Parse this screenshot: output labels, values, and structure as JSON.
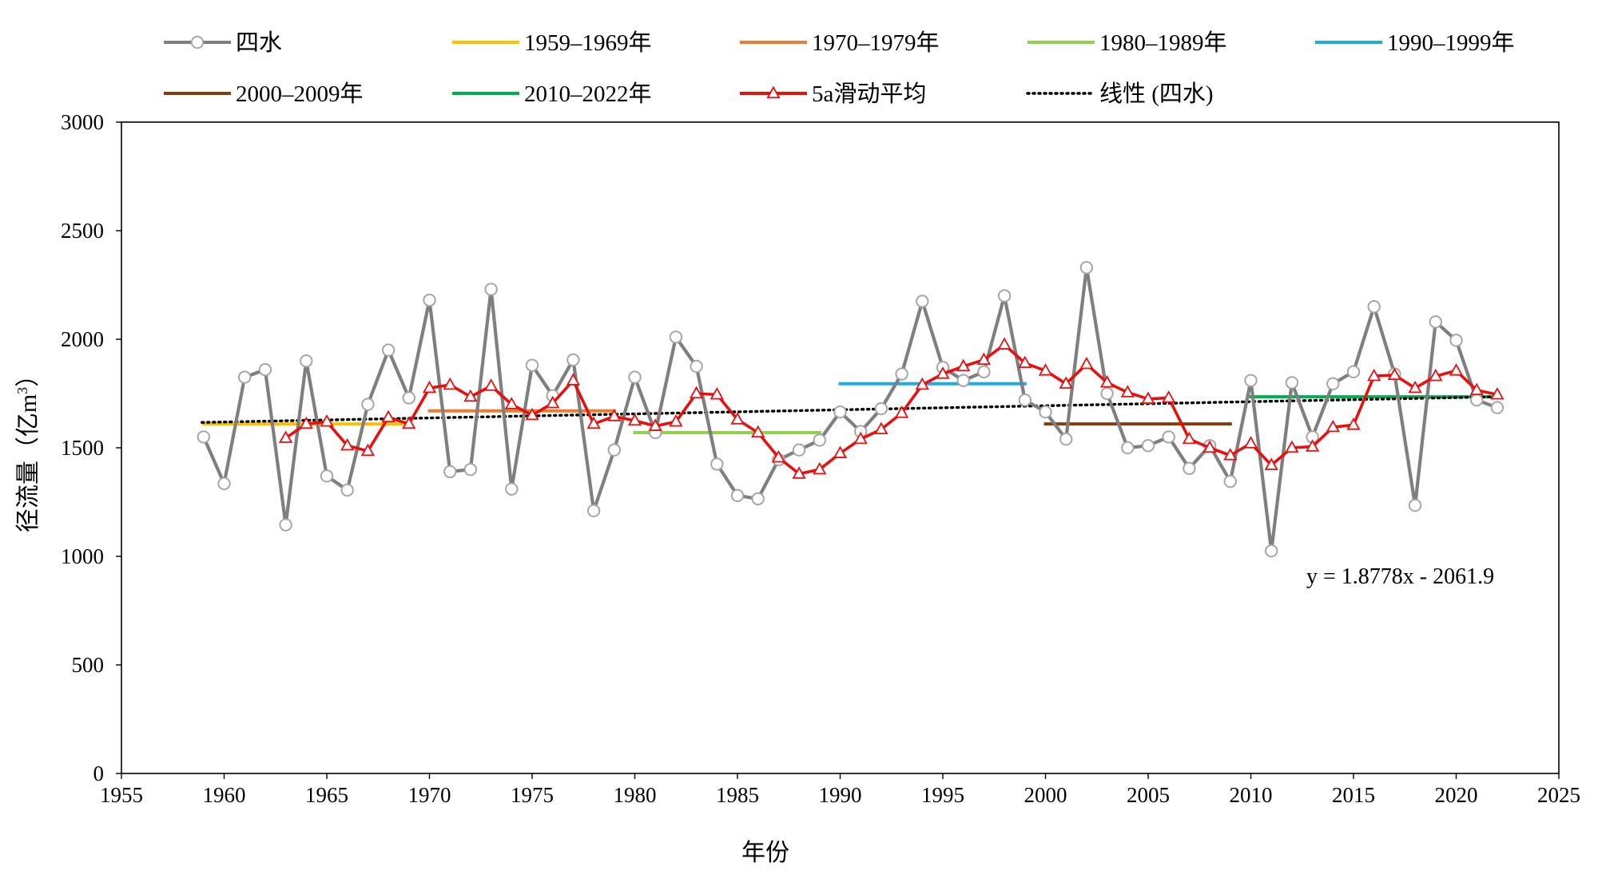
{
  "chart_data": {
    "type": "line",
    "title": "",
    "xlabel": "年份",
    "ylabel_main": "径流量（亿m",
    "ylabel_sup": "3",
    "ylabel_close": "）",
    "xlim": [
      1955,
      2025
    ],
    "ylim": [
      0,
      3000
    ],
    "x_ticks": [
      1955,
      1960,
      1965,
      1970,
      1975,
      1980,
      1985,
      1990,
      1995,
      2000,
      2005,
      2010,
      2015,
      2020,
      2025
    ],
    "y_ticks": [
      0,
      500,
      1000,
      1500,
      2000,
      2500,
      3000
    ],
    "grid": false,
    "legend_position": "top",
    "series": [
      {
        "name": "四水",
        "color": "#7f7f7f",
        "marker": "circle",
        "x": [
          1959,
          1960,
          1961,
          1962,
          1963,
          1964,
          1965,
          1966,
          1967,
          1968,
          1969,
          1970,
          1971,
          1972,
          1973,
          1974,
          1975,
          1976,
          1977,
          1978,
          1979,
          1980,
          1981,
          1982,
          1983,
          1984,
          1985,
          1986,
          1987,
          1988,
          1989,
          1990,
          1991,
          1992,
          1993,
          1994,
          1995,
          1996,
          1997,
          1998,
          1999,
          2000,
          2001,
          2002,
          2003,
          2004,
          2005,
          2006,
          2007,
          2008,
          2009,
          2010,
          2011,
          2012,
          2013,
          2014,
          2015,
          2016,
          2017,
          2018,
          2019,
          2020,
          2021,
          2022
        ],
        "values": [
          1550,
          1335,
          1825,
          1860,
          1145,
          1900,
          1370,
          1305,
          1700,
          1950,
          1730,
          2180,
          1390,
          1400,
          2230,
          1310,
          1880,
          1740,
          1905,
          1210,
          1490,
          1825,
          1570,
          2010,
          1875,
          1425,
          1280,
          1265,
          1445,
          1490,
          1535,
          1665,
          1575,
          1680,
          1840,
          2175,
          1870,
          1810,
          1850,
          2200,
          1720,
          1665,
          1540,
          2330,
          1750,
          1500,
          1510,
          1550,
          1405,
          1510,
          1345,
          1810,
          1025,
          1800,
          1550,
          1795,
          1850,
          2150,
          1840,
          1235,
          2080,
          1995,
          1720,
          1685
        ]
      },
      {
        "name": "5a滑动平均",
        "color": "#e8100f",
        "marker": "triangle",
        "x": [
          1963,
          1964,
          1965,
          1966,
          1967,
          1968,
          1969,
          1970,
          1971,
          1972,
          1973,
          1974,
          1975,
          1976,
          1977,
          1978,
          1979,
          1980,
          1981,
          1982,
          1983,
          1984,
          1985,
          1986,
          1987,
          1988,
          1989,
          1990,
          1991,
          1992,
          1993,
          1994,
          1995,
          1996,
          1997,
          1998,
          1999,
          2000,
          2001,
          2002,
          2003,
          2004,
          2005,
          2006,
          2007,
          2008,
          2009,
          2010,
          2011,
          2012,
          2013,
          2014,
          2015,
          2016,
          2017,
          2018,
          2019,
          2020,
          2021,
          2022
        ],
        "values": [
          1545,
          1610,
          1620,
          1510,
          1485,
          1640,
          1610,
          1775,
          1790,
          1735,
          1785,
          1700,
          1650,
          1705,
          1810,
          1610,
          1645,
          1625,
          1600,
          1620,
          1750,
          1745,
          1630,
          1570,
          1455,
          1380,
          1400,
          1475,
          1540,
          1585,
          1660,
          1790,
          1840,
          1875,
          1905,
          1975,
          1890,
          1855,
          1795,
          1885,
          1800,
          1755,
          1725,
          1730,
          1540,
          1500,
          1465,
          1520,
          1420,
          1500,
          1505,
          1595,
          1605,
          1830,
          1835,
          1775,
          1830,
          1855,
          1765,
          1745
        ]
      }
    ],
    "period_means": [
      {
        "name": "1959–1969年",
        "color": "#ffc000",
        "x_start": 1959,
        "x_end": 1969,
        "value": 1610
      },
      {
        "name": "1970–1979年",
        "color": "#ed7d31",
        "x_start": 1970,
        "x_end": 1979,
        "value": 1670
      },
      {
        "name": "1980–1989年",
        "color": "#92d050",
        "x_start": 1980,
        "x_end": 1989,
        "value": 1570
      },
      {
        "name": "1990–1999年",
        "color": "#1eaae8",
        "x_start": 1990,
        "x_end": 1999,
        "value": 1795
      },
      {
        "name": "2000–2009年",
        "color": "#843c0c",
        "x_start": 2000,
        "x_end": 2009,
        "value": 1610
      },
      {
        "name": "2010–2022年",
        "color": "#00b050",
        "x_start": 2010,
        "x_end": 2022,
        "value": 1735
      }
    ],
    "trendline": {
      "name": "线性 (四水)",
      "color": "#000000",
      "slope": 1.8778,
      "intercept": -2061.9,
      "x_start": 1959,
      "x_end": 2022,
      "equation_label": "y = 1.8778x - 2061.9"
    },
    "legend": [
      {
        "label": "四水",
        "kind": "series-circle",
        "color": "#7f7f7f",
        "row": 0
      },
      {
        "label": "1959–1969年",
        "kind": "line",
        "color": "#ffc000",
        "row": 0
      },
      {
        "label": "1970–1979年",
        "kind": "line",
        "color": "#ed7d31",
        "row": 0
      },
      {
        "label": "1980–1989年",
        "kind": "line",
        "color": "#92d050",
        "row": 0
      },
      {
        "label": "1990–1999年",
        "kind": "line",
        "color": "#1eaae8",
        "row": 0
      },
      {
        "label": "2000–2009年",
        "kind": "line",
        "color": "#843c0c",
        "row": 1
      },
      {
        "label": "2010–2022年",
        "kind": "line",
        "color": "#00b050",
        "row": 1
      },
      {
        "label": "5a滑动平均",
        "kind": "series-triangle",
        "color": "#e8100f",
        "row": 1
      },
      {
        "label": "线性 (四水)",
        "kind": "dotted",
        "color": "#000000",
        "row": 1
      }
    ]
  }
}
